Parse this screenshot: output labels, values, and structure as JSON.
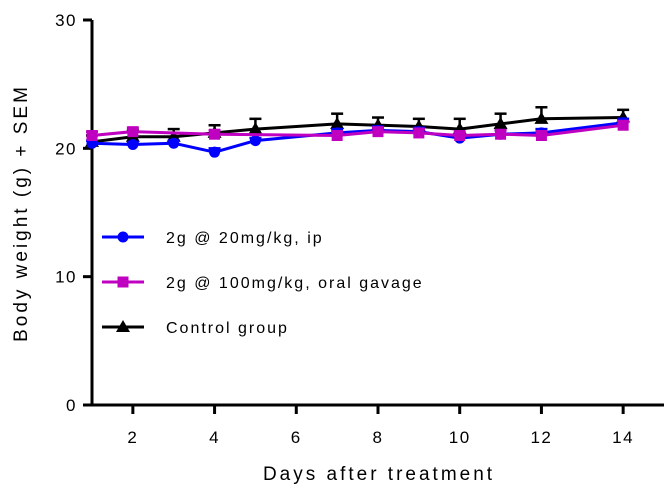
{
  "chart_data": {
    "type": "line",
    "title": "",
    "xlabel": "Days after treatment",
    "ylabel": "Body weight (g) + SEM",
    "xlim": [
      1,
      15
    ],
    "ylim": [
      0,
      30
    ],
    "x_ticks": [
      "2",
      "4",
      "6",
      "8",
      "10",
      "12",
      "14"
    ],
    "y_ticks": [
      "0",
      "10",
      "20",
      "30"
    ],
    "legend_position": "center-left",
    "grid": false,
    "series": [
      {
        "name": "2g @ 20mg/kg, ip",
        "color": "#0000ff",
        "marker": "circle",
        "x": [
          1,
          2,
          3,
          4,
          5,
          7,
          8,
          9,
          10,
          11,
          12,
          14
        ],
        "y": [
          20.4,
          20.3,
          20.4,
          19.7,
          20.6,
          21.2,
          21.4,
          21.3,
          20.8,
          21.1,
          21.2,
          22.0
        ],
        "sem": [
          0.2,
          0.2,
          0.2,
          0.3,
          0.2,
          0.3,
          0.3,
          0.3,
          0.3,
          0.3,
          0.3,
          0.3
        ]
      },
      {
        "name": "2g @ 100mg/kg, oral gavage",
        "color": "#c000c0",
        "marker": "square",
        "x": [
          1,
          2,
          4,
          7,
          8,
          9,
          10,
          11,
          12,
          14
        ],
        "y": [
          21.0,
          21.3,
          21.1,
          21.0,
          21.3,
          21.2,
          21.0,
          21.1,
          21.0,
          21.8
        ],
        "sem": [
          0.3,
          0.3,
          0.3,
          0.3,
          0.3,
          0.3,
          0.3,
          0.3,
          0.3,
          0.3
        ]
      },
      {
        "name": "Control group",
        "color": "#000000",
        "marker": "triangle",
        "x": [
          1,
          2,
          3,
          4,
          5,
          7,
          8,
          9,
          10,
          11,
          12,
          14
        ],
        "y": [
          20.5,
          20.9,
          20.9,
          21.2,
          21.5,
          21.9,
          21.8,
          21.7,
          21.5,
          21.9,
          22.3,
          22.4
        ],
        "sem": [
          0.5,
          0.5,
          0.6,
          0.6,
          0.8,
          0.8,
          0.6,
          0.6,
          0.8,
          0.8,
          0.9,
          0.6
        ]
      }
    ]
  }
}
